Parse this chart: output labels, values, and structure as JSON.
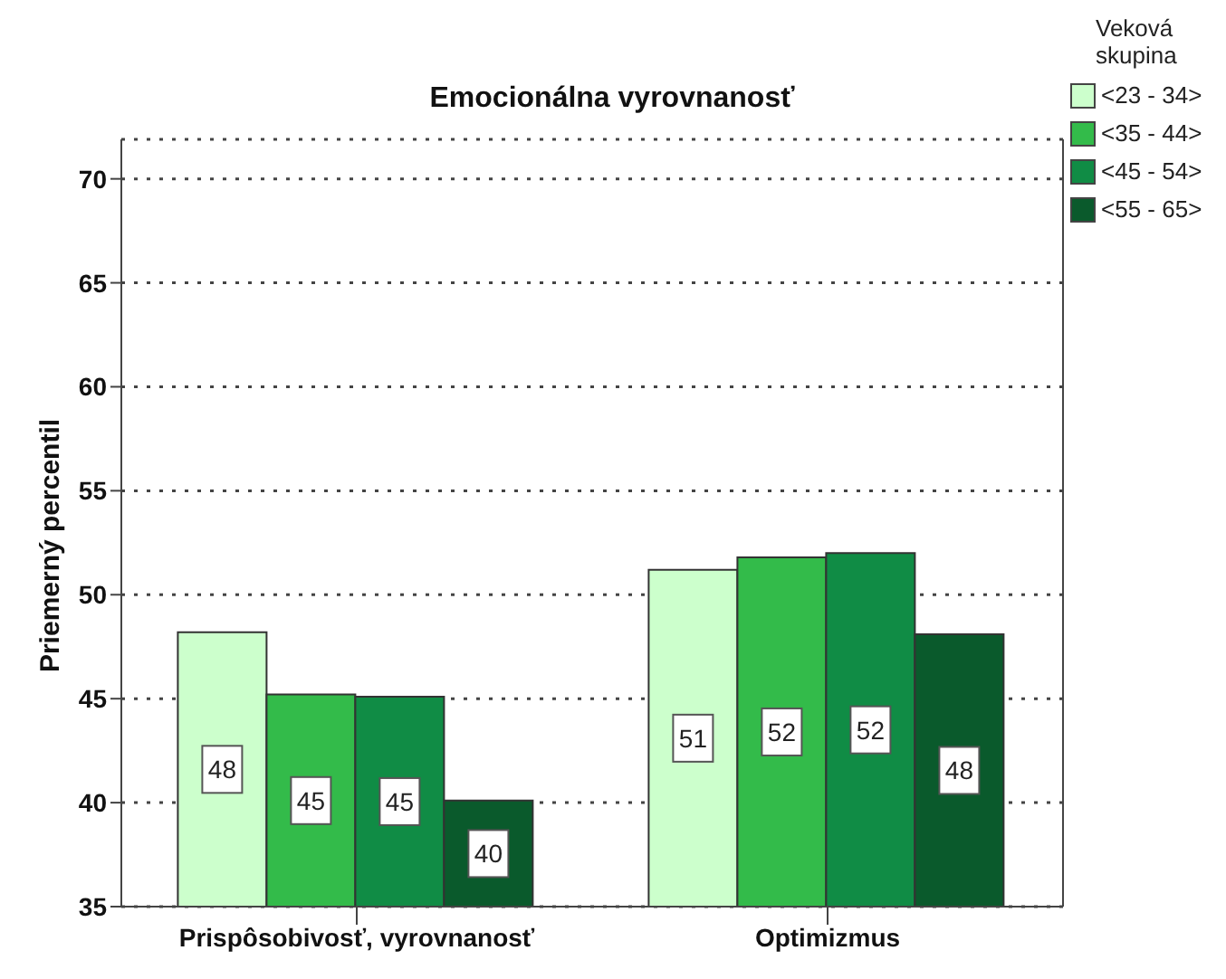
{
  "chart_data": {
    "type": "bar",
    "title": "Emocionálna vyrovnanosť",
    "ylabel": "Priemerný percentil",
    "legend_title": "Veková skupina",
    "categories": [
      "Prispôsobivosť, vyrovnanosť",
      "Optimizmus"
    ],
    "series": [
      {
        "name": "<23 - 34>",
        "color": "#ccffcc",
        "values": [
          48.2,
          51.2
        ],
        "value_labels": [
          "48",
          "51"
        ]
      },
      {
        "name": "<35 - 44>",
        "color": "#33bb4a",
        "values": [
          45.2,
          51.8
        ],
        "value_labels": [
          "45",
          "52"
        ]
      },
      {
        "name": "<45 - 54>",
        "color": "#108c45",
        "values": [
          45.1,
          52.0
        ],
        "value_labels": [
          "45",
          "52"
        ]
      },
      {
        "name": "<55 - 65>",
        "color": "#0a5a2c",
        "values": [
          40.1,
          48.1
        ],
        "value_labels": [
          "40",
          "48"
        ]
      }
    ],
    "ylim": [
      35,
      71.9
    ],
    "yticks": [
      35,
      40,
      45,
      50,
      55,
      60,
      65,
      70
    ],
    "grid": "y",
    "legend": "top right"
  }
}
